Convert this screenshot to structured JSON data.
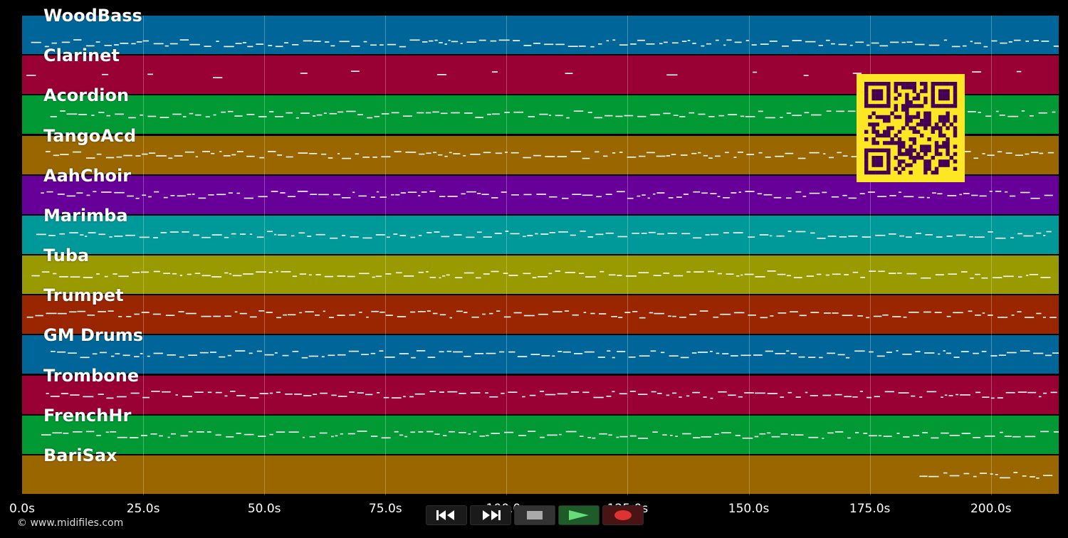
{
  "tracks": [
    {
      "name": "WoodBass",
      "color": "#006699"
    },
    {
      "name": "Clarinet",
      "color": "#990033"
    },
    {
      "name": "Acordion",
      "color": "#009933"
    },
    {
      "name": "TangoAcd",
      "color": "#996600"
    },
    {
      "name": "AahChoir",
      "color": "#660099"
    },
    {
      "name": "Marimba",
      "color": "#009999"
    },
    {
      "name": "Tuba",
      "color": "#999900"
    },
    {
      "name": "Trumpet",
      "color": "#992600"
    },
    {
      "name": "GM Drums",
      "color": "#006699"
    },
    {
      "name": "Trombone",
      "color": "#990033"
    },
    {
      "name": "FrenchHr",
      "color": "#009933"
    },
    {
      "name": "BariSax",
      "color": "#996600"
    }
  ],
  "timeline": {
    "max_seconds": 214,
    "ticks": [
      "0.0s",
      "25.0s",
      "50.0s",
      "75.0s",
      "100.0s",
      "125.0s",
      "150.0s",
      "175.0s",
      "200.0s"
    ]
  },
  "footer": {
    "copyright": "© www.midifiles.com"
  },
  "transport": {
    "buttons": [
      {
        "name": "rewind-button",
        "icon": "rewind-icon"
      },
      {
        "name": "fast-forward-button",
        "icon": "fast-forward-icon"
      },
      {
        "name": "stop-button",
        "icon": "stop-icon"
      },
      {
        "name": "play-button",
        "icon": "play-icon"
      },
      {
        "name": "record-button",
        "icon": "record-icon"
      }
    ]
  },
  "qr_code": {
    "icon": "qr-code-icon",
    "color": "#fde725",
    "module_color": "#440154"
  }
}
